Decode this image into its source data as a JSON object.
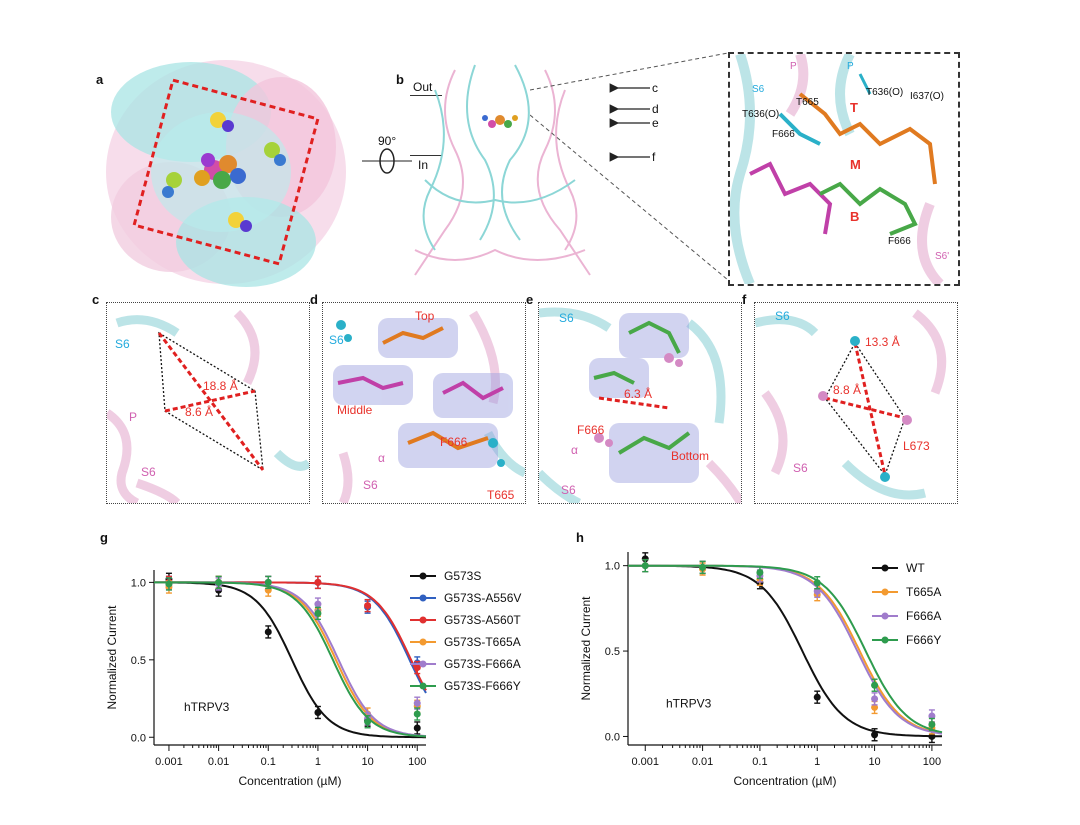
{
  "panels": {
    "a": {
      "label": "a"
    },
    "b": {
      "label": "b",
      "out": "Out",
      "in": "In",
      "rotation": "90°",
      "arrows": [
        "c",
        "d",
        "e",
        "f"
      ]
    },
    "b_inset": {
      "labels": [
        "S6",
        "P",
        "P",
        "T636(O)",
        "T665",
        "T636(O)",
        "I637(O)",
        "F666",
        "T",
        "M",
        "B",
        "F666",
        "S6'"
      ]
    },
    "c": {
      "label": "c",
      "s6": "S6",
      "p": "P",
      "s6b": "S6",
      "dist1": "18.8 Å",
      "dist2": "8.6 Å"
    },
    "d": {
      "label": "d",
      "s6": "S6",
      "top": "Top",
      "middle": "Middle",
      "f666": "F666",
      "alpha": "α",
      "s6b": "S6",
      "t665": "T665"
    },
    "e": {
      "label": "e",
      "s6": "S6",
      "dist": "6.3 Å",
      "f666": "F666",
      "alpha": "α",
      "bottom": "Bottom",
      "s6b": "S6"
    },
    "f": {
      "label": "f",
      "s6": "S6",
      "dist1": "13.3 Å",
      "dist2": "8.8 Å",
      "s6b": "S6",
      "l673": "L673"
    }
  },
  "chart_data": [
    {
      "panel": "g",
      "type": "line",
      "x_scale": "log",
      "xlabel": "Concentration (µM)",
      "ylabel": "Normalized Current",
      "xlim": [
        0.0005,
        150
      ],
      "ylim": [
        -0.05,
        1.08
      ],
      "xticks": [
        "0.001",
        "0.01",
        "0.1",
        "1",
        "10",
        "100"
      ],
      "yticks": [
        "0.0",
        "0.5",
        "1.0"
      ],
      "annotation": "hTRPV3",
      "legend_position": "right",
      "series": [
        {
          "name": "G573S",
          "color": "#111111",
          "ic50": 0.3,
          "x": [
            0.001,
            0.01,
            0.1,
            1,
            10,
            100
          ],
          "y": [
            1.02,
            0.95,
            0.68,
            0.16,
            0.11,
            0.06
          ]
        },
        {
          "name": "G573S-A556V",
          "color": "#3060c0",
          "ic50": 70,
          "x": [
            0.001,
            0.01,
            0.1,
            1,
            10,
            100
          ],
          "y": [
            1.0,
            1.0,
            1.0,
            1.0,
            0.84,
            0.48
          ]
        },
        {
          "name": "G573S-A560T",
          "color": "#e03030",
          "ic50": 75,
          "x": [
            0.001,
            0.01,
            0.1,
            1,
            10,
            100
          ],
          "y": [
            1.0,
            1.0,
            1.0,
            1.0,
            0.85,
            0.45
          ]
        },
        {
          "name": "G573S-T665A",
          "color": "#f39a30",
          "ic50": 2.3,
          "x": [
            0.001,
            0.01,
            0.1,
            1,
            10,
            100
          ],
          "y": [
            0.97,
            1.0,
            0.95,
            0.82,
            0.15,
            0.2
          ]
        },
        {
          "name": "G573S-F666A",
          "color": "#a07ccc",
          "ic50": 2.6,
          "x": [
            0.001,
            0.01,
            0.1,
            1,
            10,
            100
          ],
          "y": [
            0.99,
            0.99,
            1.0,
            0.86,
            0.12,
            0.22
          ]
        },
        {
          "name": "G573S-F666Y",
          "color": "#2e9c4e",
          "ic50": 2.0,
          "x": [
            0.001,
            0.01,
            0.1,
            1,
            10,
            100
          ],
          "y": [
            0.99,
            1.0,
            1.0,
            0.8,
            0.1,
            0.15
          ]
        }
      ]
    },
    {
      "panel": "h",
      "type": "line",
      "x_scale": "log",
      "xlabel": "Concentration (µM)",
      "ylabel": "Normalized Current",
      "xlim": [
        0.0005,
        150
      ],
      "ylim": [
        -0.05,
        1.08
      ],
      "xticks": [
        "0.001",
        "0.01",
        "0.1",
        "1",
        "10",
        "100"
      ],
      "yticks": [
        "0.0",
        "0.5",
        "1.0"
      ],
      "annotation": "hTRPV3",
      "legend_position": "top-right",
      "series": [
        {
          "name": "WT",
          "color": "#111111",
          "ic50": 0.55,
          "x": [
            0.001,
            0.01,
            0.1,
            1,
            10,
            100
          ],
          "y": [
            1.04,
            0.99,
            0.9,
            0.23,
            0.01,
            0.0
          ]
        },
        {
          "name": "T665A",
          "color": "#f39a30",
          "ic50": 5.5,
          "x": [
            0.001,
            0.01,
            0.1,
            1,
            10,
            100
          ],
          "y": [
            1.0,
            0.98,
            0.92,
            0.83,
            0.17,
            0.05
          ]
        },
        {
          "name": "F666A",
          "color": "#a07ccc",
          "ic50": 5.0,
          "x": [
            0.001,
            0.01,
            0.1,
            1,
            10,
            100
          ],
          "y": [
            1.0,
            0.99,
            0.94,
            0.85,
            0.22,
            0.12
          ]
        },
        {
          "name": "F666Y",
          "color": "#2e9c4e",
          "ic50": 7.0,
          "x": [
            0.001,
            0.01,
            0.1,
            1,
            10,
            100
          ],
          "y": [
            1.0,
            0.99,
            0.96,
            0.9,
            0.3,
            0.07
          ]
        }
      ]
    }
  ]
}
